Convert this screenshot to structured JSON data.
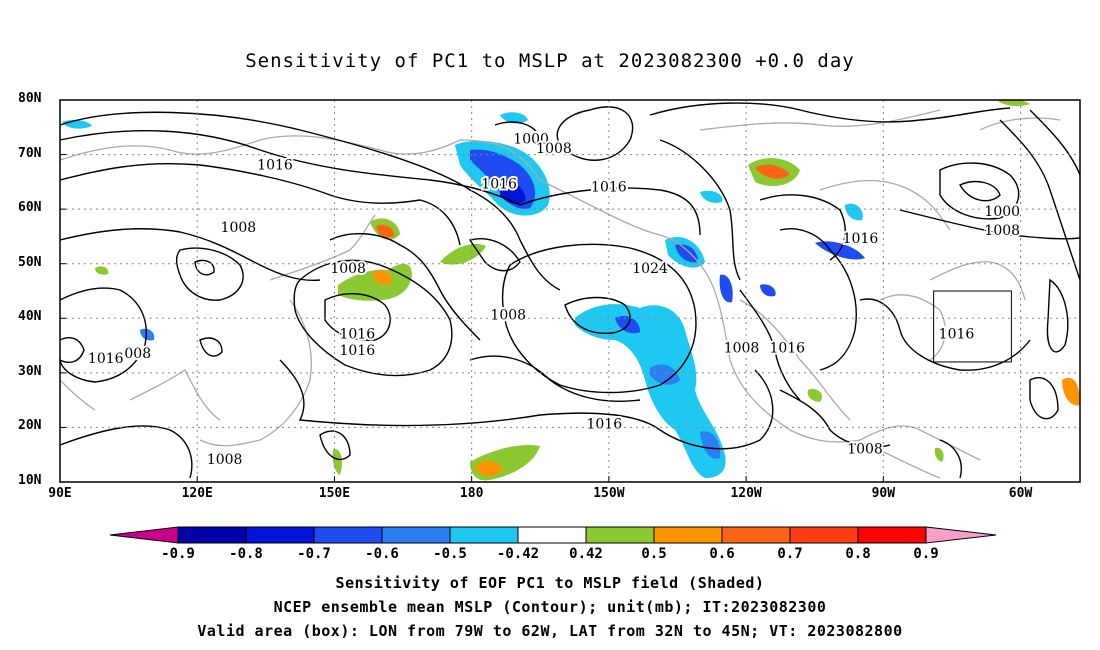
{
  "title": "Sensitivity of PC1 to MSLP at 2023082300 +0.0 day",
  "axes": {
    "lat_labels": [
      "80N",
      "70N",
      "60N",
      "50N",
      "40N",
      "30N",
      "20N",
      "10N"
    ],
    "lon_labels": [
      "90E",
      "120E",
      "150E",
      "180",
      "150W",
      "120W",
      "90W",
      "60W"
    ]
  },
  "contour_labels": [
    {
      "text": "1000",
      "lon": -167,
      "lat": 72.8
    },
    {
      "text": "1008",
      "lon": -162,
      "lat": 71
    },
    {
      "text": "1016",
      "lon": 137,
      "lat": 68
    },
    {
      "text": "1016",
      "lon": -174,
      "lat": 64.5
    },
    {
      "text": "1016",
      "lon": -150,
      "lat": 64
    },
    {
      "text": "1008",
      "lon": 129,
      "lat": 56.5
    },
    {
      "text": "1008",
      "lon": 153,
      "lat": 49
    },
    {
      "text": "1008",
      "lon": -172,
      "lat": 40.5
    },
    {
      "text": "1024",
      "lon": -141,
      "lat": 49
    },
    {
      "text": "1016",
      "lon": 155,
      "lat": 37
    },
    {
      "text": "1016",
      "lon": 155,
      "lat": 34
    },
    {
      "text": "1016",
      "lon": 100,
      "lat": 32.5
    },
    {
      "text": "008",
      "lon": 107,
      "lat": 33.5
    },
    {
      "text": "1008",
      "lon": -121,
      "lat": 34.5
    },
    {
      "text": "1016",
      "lon": -111,
      "lat": 34.5
    },
    {
      "text": "1016",
      "lon": -151,
      "lat": 20.5
    },
    {
      "text": "1016",
      "lon": -95,
      "lat": 54.5
    },
    {
      "text": "1000",
      "lon": -64,
      "lat": 59.5
    },
    {
      "text": "1008",
      "lon": -64,
      "lat": 56
    },
    {
      "text": "1016",
      "lon": -74,
      "lat": 37
    },
    {
      "text": "1008",
      "lon": -94,
      "lat": 16
    },
    {
      "text": "1008",
      "lon": 126,
      "lat": 14
    }
  ],
  "valid_box": {
    "lon_min": -79,
    "lon_max": -62,
    "lat_min": 32,
    "lat_max": 45
  },
  "colorbar": {
    "labels": [
      "-0.9",
      "-0.8",
      "-0.7",
      "-0.6",
      "-0.5",
      "-0.42",
      "0.42",
      "0.5",
      "0.6",
      "0.7",
      "0.8",
      "0.9"
    ],
    "colors": [
      "#0000a8",
      "#0014d8",
      "#1e4cf0",
      "#2b7ff5",
      "#1ec8f0",
      "#ffffff",
      "#8cc832",
      "#ff9400",
      "#ff6414",
      "#ff3c14",
      "#ff0000"
    ],
    "low_color": "#c8008c",
    "high_color": "#f8a0c8"
  },
  "captions": {
    "line1": "Sensitivity of EOF PC1 to MSLP field (Shaded)",
    "line2": "NCEP ensemble mean MSLP (Contour); unit(mb); IT:2023082300",
    "line3": "Valid area (box): LON from 79W to 62W, LAT from 32N to 45N; VT: 2023082800"
  }
}
